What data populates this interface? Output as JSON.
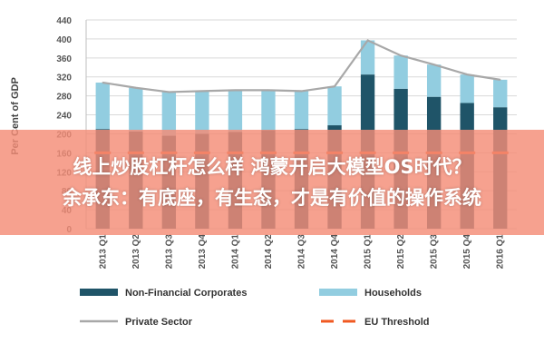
{
  "chart_data": {
    "type": "bar",
    "ylabel": "Per Cent of GDP",
    "ylim": [
      0,
      440
    ],
    "yticks": [
      0,
      40,
      80,
      120,
      160,
      200,
      240,
      280,
      320,
      360,
      400,
      440
    ],
    "categories": [
      "2013 Q1",
      "2013 Q2",
      "2013 Q3",
      "2013 Q4",
      "2014 Q1",
      "2014 Q2",
      "2014 Q3",
      "2014 Q4",
      "2015 Q1",
      "2015 Q2",
      "2015 Q3",
      "2015 Q4",
      "2016 Q1"
    ],
    "series": [
      {
        "name": "Non-Financial Corporates",
        "kind": "stacked-bar",
        "color": "#1f5468",
        "values": [
          210,
          205,
          196,
          200,
          204,
          208,
          210,
          218,
          325,
          295,
          278,
          265,
          256
        ]
      },
      {
        "name": "Households",
        "kind": "stacked-bar",
        "color": "#92cde0",
        "values": [
          98,
          92,
          92,
          90,
          88,
          84,
          80,
          82,
          72,
          70,
          68,
          60,
          58
        ]
      },
      {
        "name": "Private Sector",
        "kind": "line",
        "color": "#a8a8a8",
        "values": [
          308,
          297,
          288,
          290,
          292,
          292,
          290,
          300,
          397,
          365,
          346,
          325,
          314
        ]
      },
      {
        "name": "EU Threshold",
        "kind": "dashed-line",
        "color": "#f05a22",
        "values": [
          160,
          160,
          160,
          160,
          160,
          160,
          160,
          160,
          160,
          160,
          160,
          160,
          160
        ]
      }
    ]
  },
  "banner": {
    "line1": "线上炒股杠杆怎么样 鸿蒙开启大模型OS时代？",
    "line2": "余承东：有底座，有生态，才是有价值的操作系统"
  }
}
